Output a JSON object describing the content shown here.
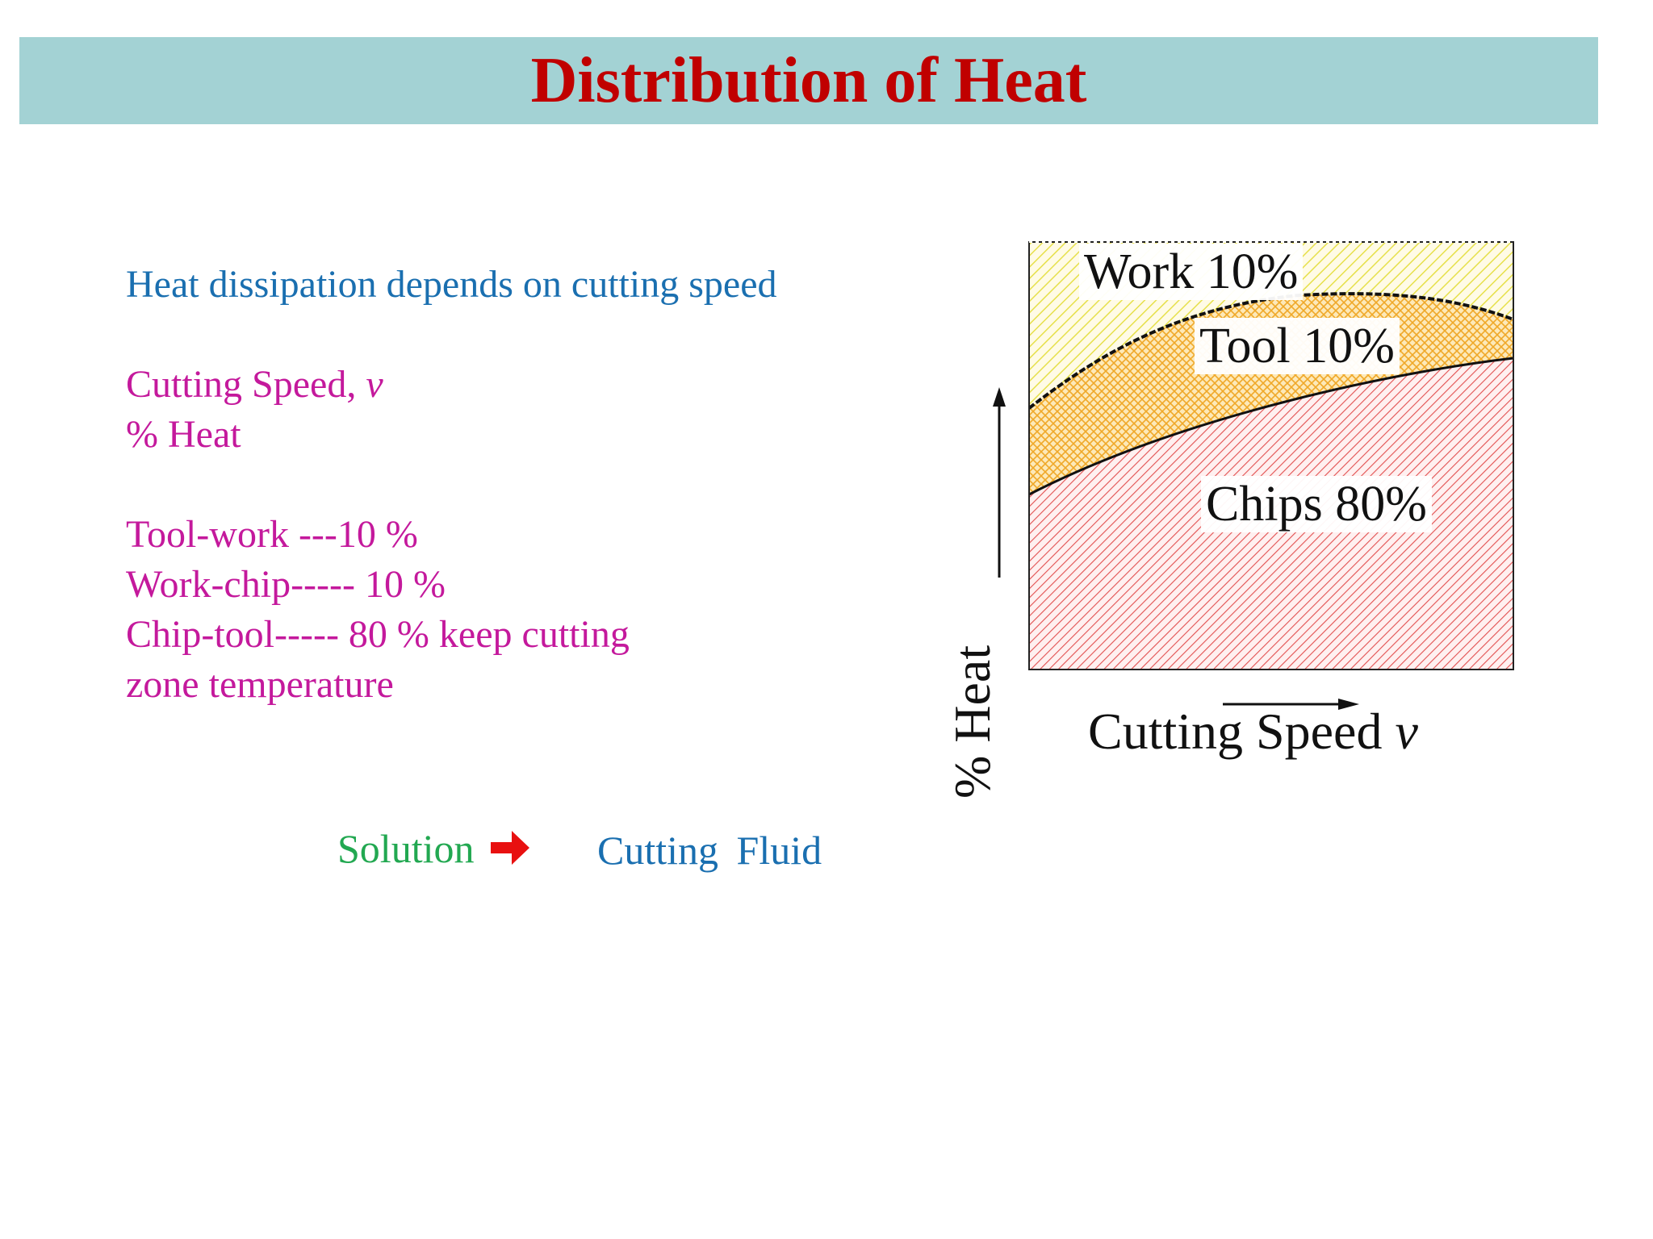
{
  "slide": {
    "title": "Distribution of Heat",
    "colors": {
      "title_bar": "#a3d2d4",
      "title_text": "#c00000",
      "blue_text": "#1a6fb0",
      "magenta_text": "#c4199c",
      "green_text": "#22a851",
      "arrow": "#e81010"
    }
  },
  "text": {
    "intro": "Heat dissipation depends on cutting speed",
    "speed_prefix": "Cutting Speed, ",
    "speed_symbol": "v",
    "heat_line": "% Heat",
    "tool_work": "Tool-work ---10 %",
    "work_chip": "Work-chip----- 10 %",
    "chip_tool": "Chip-tool----- 80 % keep cutting",
    "zone_temp": "zone temperature"
  },
  "solution": {
    "label": "Solution",
    "arrow_icon": "arrow-right-icon",
    "answer": "Cutting Fluid"
  },
  "figure": {
    "y_label": "% Heat",
    "x_label_prefix": "Cutting Speed ",
    "x_label_symbol": "v",
    "regions": {
      "work": "Work 10%",
      "tool": "Tool 10%",
      "chips": "Chips 80%"
    },
    "region_colors": {
      "work": "#e8e85a",
      "tool": "#f0b030",
      "chips": "#e04848"
    }
  }
}
